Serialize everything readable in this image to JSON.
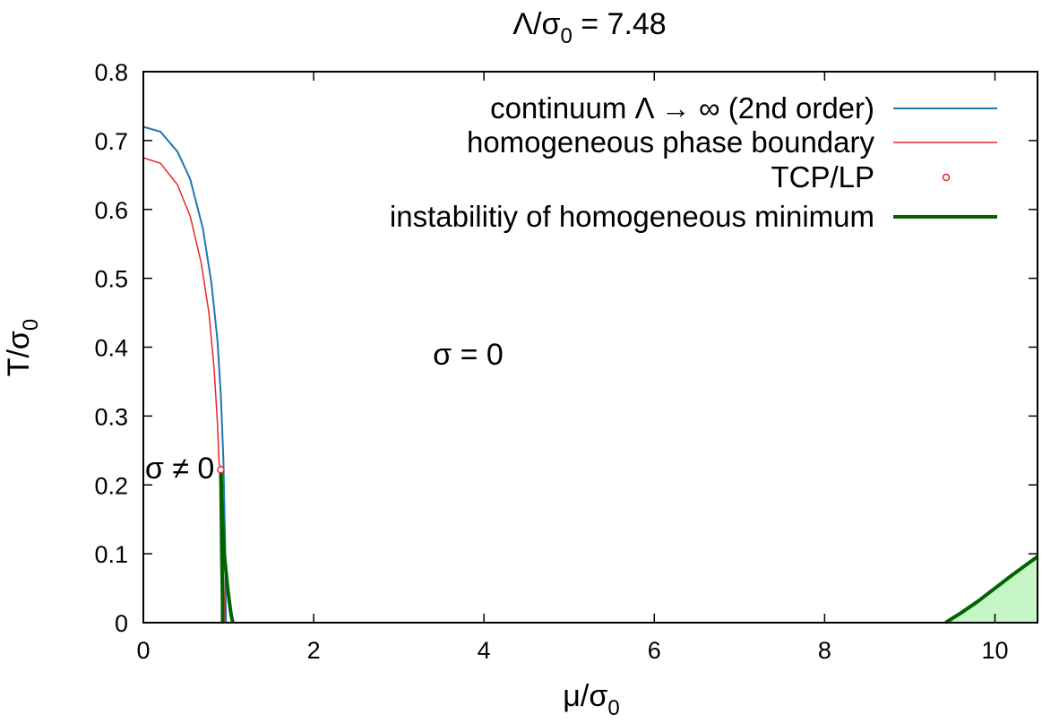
{
  "chart_data": {
    "type": "line",
    "title": "Λ/σ₀ = 7.48",
    "title_parts": {
      "main": "Λ/σ",
      "sub": "0",
      "rest": " = 7.48"
    },
    "xlabel": "μ/σ₀",
    "xlabel_parts": {
      "main": "μ/σ",
      "sub": "0"
    },
    "ylabel": "T/σ₀",
    "ylabel_parts": {
      "main": "T/σ",
      "sub": "0"
    },
    "xlim": [
      0,
      10.5
    ],
    "ylim": [
      0,
      0.8
    ],
    "x_ticks": [
      0,
      2,
      4,
      6,
      8,
      10
    ],
    "y_ticks": [
      0,
      0.1,
      0.2,
      0.3,
      0.4,
      0.5,
      0.6,
      0.7,
      0.8
    ],
    "x_tick_labels": [
      "0",
      "2",
      "4",
      "6",
      "8",
      "10"
    ],
    "y_tick_labels": [
      "0",
      "0.1",
      "0.2",
      "0.3",
      "0.4",
      "0.5",
      "0.6",
      "0.7",
      "0.8"
    ],
    "grid": false,
    "legend_position": "top-right",
    "legend": [
      {
        "label": "continuum Λ → ∞ (2nd order)",
        "color": "#1f77b4",
        "style": "line"
      },
      {
        "label": "homogeneous phase boundary",
        "color": "#e8262a",
        "style": "line"
      },
      {
        "label": "TCP/LP",
        "color": "#e8262a",
        "style": "point"
      },
      {
        "label": "instabilitiy of homogeneous minimum",
        "color": "#006400",
        "style": "thick-line"
      }
    ],
    "series": [
      {
        "color": "#1f77b4",
        "x": [
          0,
          0.2,
          0.4,
          0.55,
          0.7,
          0.8,
          0.87,
          0.91,
          0.94,
          0.96,
          0.97
        ],
        "y": [
          0.72,
          0.713,
          0.684,
          0.644,
          0.572,
          0.493,
          0.41,
          0.33,
          0.238,
          0.12,
          0
        ]
      },
      {
        "color": "#e8262a",
        "x": [
          0,
          0.2,
          0.4,
          0.55,
          0.68,
          0.77,
          0.83,
          0.87,
          0.89,
          0.91,
          0.92,
          0.94,
          0.96
        ],
        "y": [
          0.675,
          0.667,
          0.636,
          0.59,
          0.522,
          0.45,
          0.37,
          0.29,
          0.23,
          0.225,
          0.15,
          0.07,
          0
        ]
      },
      {
        "color": "#006400",
        "x": [
          0.91,
          0.92,
          0.935,
          0.95,
          0.97,
          0.99,
          1.01,
          1.03,
          1.05
        ],
        "y": [
          0.222,
          0.18,
          0.13,
          0.1,
          0.075,
          0.05,
          0.03,
          0.012,
          0
        ]
      },
      {
        "color": "#006400",
        "x": [
          0.91,
          0.915,
          0.92,
          0.925,
          0.93,
          0.93
        ],
        "y": [
          0.222,
          0.17,
          0.12,
          0.07,
          0.03,
          0
        ]
      },
      {
        "color": "#006400",
        "fill": "#c6f5c6",
        "x": [
          9.42,
          9.6,
          9.8,
          10.0,
          10.2,
          10.5
        ],
        "y": [
          0,
          0.014,
          0.031,
          0.05,
          0.069,
          0.096
        ]
      }
    ],
    "points": [
      {
        "x": 0.91,
        "y": 0.222,
        "color": "#e8262a"
      }
    ],
    "annotations": [
      {
        "text": "σ = 0",
        "x": 3.4,
        "y": 0.39
      },
      {
        "text": "σ  ≠ 0",
        "x": 0.02,
        "y": 0.225
      }
    ]
  }
}
